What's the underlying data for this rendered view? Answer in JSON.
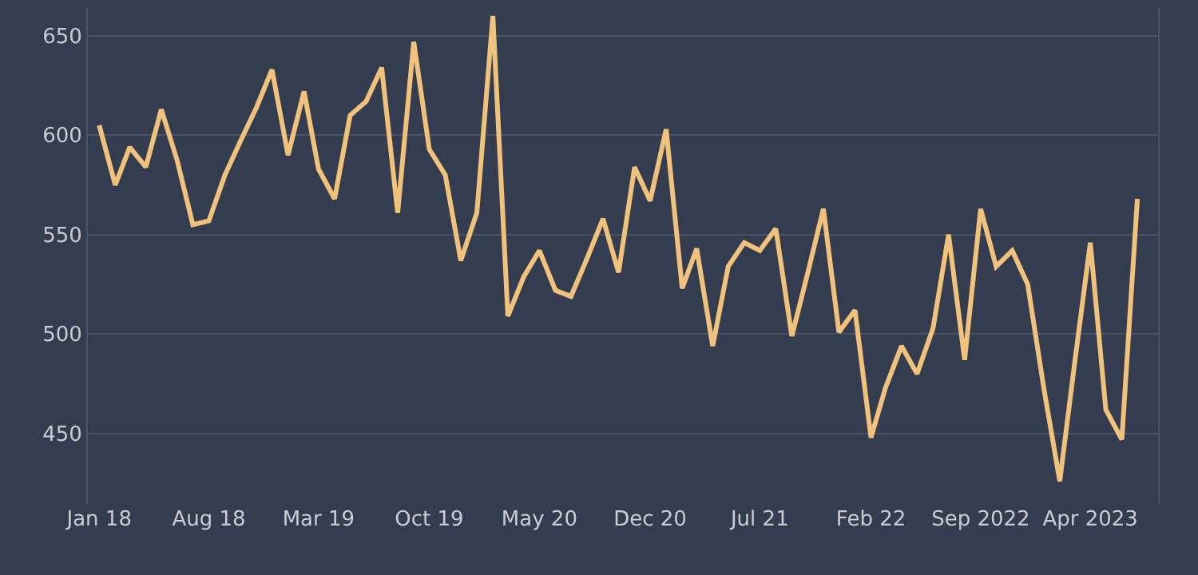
{
  "chart_data": {
    "type": "line",
    "x": [
      "2018-01",
      "2018-02",
      "2018-03",
      "2018-04",
      "2018-05",
      "2018-06",
      "2018-07",
      "2018-08",
      "2018-09",
      "2018-10",
      "2018-11",
      "2018-12",
      "2019-01",
      "2019-02",
      "2019-03",
      "2019-04",
      "2019-05",
      "2019-06",
      "2019-07",
      "2019-08",
      "2019-09",
      "2019-10",
      "2019-11",
      "2019-12",
      "2020-01",
      "2020-02",
      "2020-03",
      "2020-04",
      "2020-05",
      "2020-06",
      "2020-07",
      "2020-08",
      "2020-09",
      "2020-10",
      "2020-11",
      "2020-12",
      "2021-01",
      "2021-02",
      "2021-03",
      "2021-04",
      "2021-05",
      "2021-06",
      "2021-07",
      "2021-08",
      "2021-09",
      "2021-10",
      "2021-11",
      "2021-12",
      "2022-01",
      "2022-02",
      "2022-03",
      "2022-04",
      "2022-05",
      "2022-06",
      "2022-07",
      "2022-08",
      "2022-09",
      "2022-10",
      "2022-11",
      "2022-12",
      "2023-01",
      "2023-02",
      "2023-03",
      "2023-04",
      "2023-05",
      "2023-06",
      "2023-07"
    ],
    "series": [
      {
        "color": "#f0c27b",
        "values": [
          605,
          575,
          594,
          584,
          613,
          587,
          555,
          557,
          580,
          597,
          614,
          633,
          590,
          622,
          583,
          568,
          610,
          617,
          634,
          561,
          647,
          593,
          580,
          537,
          561,
          660,
          509,
          529,
          542,
          522,
          519,
          538,
          558,
          531,
          584,
          567,
          603,
          523,
          543,
          494,
          534,
          546,
          542,
          553,
          499,
          530,
          563,
          501,
          512,
          448,
          473,
          494,
          480,
          503,
          550,
          487,
          563,
          534,
          542,
          525,
          473,
          426,
          484,
          546,
          462,
          447,
          568
        ]
      }
    ],
    "xlim": [
      "2017-12-10",
      "2023-08-10"
    ],
    "xticks": [
      {
        "value": "2018-01",
        "label": "Jan 18"
      },
      {
        "value": "2018-08",
        "label": "Aug 18"
      },
      {
        "value": "2019-03",
        "label": "Mar 19"
      },
      {
        "value": "2019-10",
        "label": "Oct 19"
      },
      {
        "value": "2020-05",
        "label": "May 20"
      },
      {
        "value": "2020-12",
        "label": "Dec 20"
      },
      {
        "value": "2021-07",
        "label": "Jul 21"
      },
      {
        "value": "2022-02",
        "label": "Feb 22"
      },
      {
        "value": "2022-09",
        "label": "Sep 2022"
      },
      {
        "value": "2023-04",
        "label": "Apr 2023"
      }
    ],
    "ylim": [
      415,
      664
    ],
    "yticks": [
      450,
      500,
      550,
      600,
      650
    ],
    "grid": "y",
    "legend": false,
    "line_style": "solid",
    "marker": "none"
  }
}
